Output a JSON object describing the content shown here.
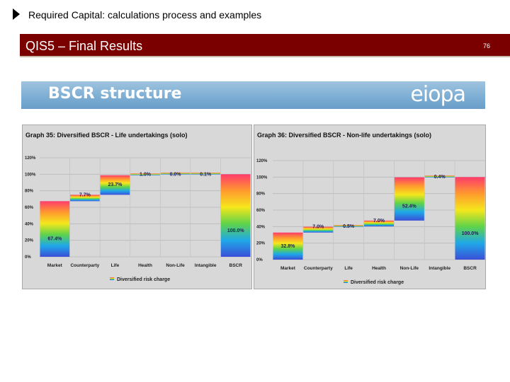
{
  "header": {
    "title": "Required Capital: calculations process and examples"
  },
  "slide": {
    "title": "QIS5 – Final Results",
    "page_number": "76"
  },
  "banner": {
    "title": "BSCR structure",
    "logo_text": "eiopa"
  },
  "charts": {
    "life": {
      "title": "Graph 35: Diversified BSCR - Life undertakings (solo)"
    },
    "nonlife": {
      "title": "Graph 36: Diversified BSCR - Non-life undertakings (solo)"
    }
  },
  "chart_data": [
    {
      "type": "bar",
      "title": "Graph 35: Diversified BSCR - Life undertakings (solo)",
      "categories": [
        "Market",
        "Counterparty",
        "Life",
        "Health",
        "Non-Life",
        "Intangible",
        "BSCR"
      ],
      "bases": [
        0,
        67.4,
        75.1,
        98.8,
        99.8,
        99.8,
        0
      ],
      "values": [
        67.4,
        7.7,
        23.7,
        1.0,
        0.0,
        0.1,
        100.0
      ],
      "labels": [
        "67.4%",
        "7.7%",
        "23.7%",
        "1.0%",
        "0.0%",
        "0.1%",
        "100.0%"
      ],
      "ylim": [
        0,
        120
      ],
      "yticks": [
        "0%",
        "20%",
        "40%",
        "60%",
        "80%",
        "100%",
        "120%"
      ],
      "legend": "Diversified risk charge",
      "grid": true
    },
    {
      "type": "bar",
      "title": "Graph 36: Diversified BSCR - Non-life undertakings (solo)",
      "categories": [
        "Market",
        "Counterparty",
        "Life",
        "Health",
        "Non-Life",
        "Intangible",
        "BSCR"
      ],
      "bases": [
        0,
        32.8,
        39.8,
        40.3,
        47.3,
        99.7,
        0
      ],
      "values": [
        32.8,
        7.0,
        0.5,
        7.0,
        52.4,
        0.4,
        100.0
      ],
      "labels": [
        "32.8%",
        "7.0%",
        "0.5%",
        "7.0%",
        "52.4%",
        "0.4%",
        "100.0%"
      ],
      "ylim": [
        0,
        120
      ],
      "yticks": [
        "0%",
        "20%",
        "40%",
        "60%",
        "80%",
        "100%",
        "120%"
      ],
      "legend": "Diversified risk charge",
      "grid": true
    }
  ],
  "colors": {
    "title_bar": "#7a0000",
    "banner": "#7eaed4",
    "gradient": [
      "#ff3b6b",
      "#ff9a2e",
      "#f5e71c",
      "#5fd34a",
      "#1fa8e8",
      "#3a4fd8"
    ]
  }
}
